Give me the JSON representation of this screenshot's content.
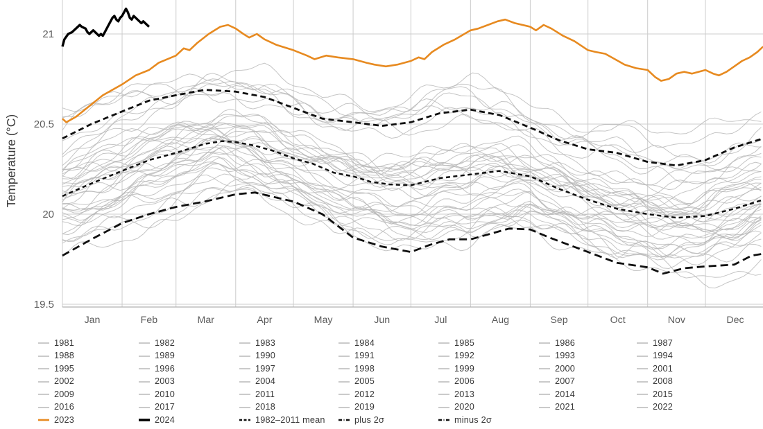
{
  "colors": {
    "grid": "#cccccc",
    "axis_line": "#b0b0b0",
    "year_line": "#b6b6b6",
    "legend_year_swatch": "#bdbdbd",
    "orange_2023": "#E78A20",
    "black_2024": "#000000",
    "dashed_stat": "#101010",
    "tick_text": "#5b5b5b",
    "title_text": "#3a3a3a"
  },
  "chart": {
    "y_axis": {
      "title": "Temperature (°C)",
      "ticks": [
        {
          "label": "21",
          "value": 21
        },
        {
          "label": "20.5",
          "value": 20.5
        },
        {
          "label": "20",
          "value": 20
        },
        {
          "label": "19.5",
          "value": 19.5
        }
      ]
    },
    "x_axis": {
      "months": [
        "Jan",
        "Feb",
        "Mar",
        "Apr",
        "May",
        "Jun",
        "Jul",
        "Aug",
        "Sep",
        "Oct",
        "Nov",
        "Dec"
      ],
      "month_start_days": [
        0,
        31,
        59,
        90,
        120,
        151,
        181,
        212,
        243,
        273,
        304,
        334
      ],
      "end_day": 365
    }
  },
  "chart_data": {
    "type": "line",
    "title": "",
    "xlabel": "",
    "ylabel": "Temperature (°C)",
    "ylim": [
      19.5,
      21.19
    ],
    "x_unit": "day_of_year",
    "grid": true,
    "legend_position": "bottom",
    "series": [
      {
        "name": "plus 2σ",
        "style": "dashed",
        "color": "#101010",
        "width": 2.8,
        "dash": "8,5",
        "points": [
          [
            0,
            20.42
          ],
          [
            15,
            20.5
          ],
          [
            31,
            20.57
          ],
          [
            45,
            20.63
          ],
          [
            59,
            20.66
          ],
          [
            74,
            20.69
          ],
          [
            90,
            20.68
          ],
          [
            105,
            20.65
          ],
          [
            120,
            20.59
          ],
          [
            135,
            20.53
          ],
          [
            151,
            20.51
          ],
          [
            166,
            20.49
          ],
          [
            181,
            20.51
          ],
          [
            196,
            20.56
          ],
          [
            212,
            20.58
          ],
          [
            227,
            20.55
          ],
          [
            243,
            20.48
          ],
          [
            258,
            20.41
          ],
          [
            273,
            20.36
          ],
          [
            288,
            20.34
          ],
          [
            304,
            20.29
          ],
          [
            319,
            20.27
          ],
          [
            334,
            20.3
          ],
          [
            349,
            20.37
          ],
          [
            364,
            20.42
          ]
        ]
      },
      {
        "name": "1982–2011 mean",
        "style": "dashed",
        "color": "#101010",
        "width": 2.5,
        "dash": "6,4.5",
        "points": [
          [
            0,
            20.1
          ],
          [
            15,
            20.17
          ],
          [
            31,
            20.24
          ],
          [
            45,
            20.3
          ],
          [
            59,
            20.34
          ],
          [
            74,
            20.39
          ],
          [
            83,
            20.405
          ],
          [
            90,
            20.4
          ],
          [
            100,
            20.38
          ],
          [
            110,
            20.35
          ],
          [
            120,
            20.31
          ],
          [
            130,
            20.28
          ],
          [
            141,
            20.23
          ],
          [
            151,
            20.21
          ],
          [
            160,
            20.18
          ],
          [
            170,
            20.165
          ],
          [
            181,
            20.16
          ],
          [
            196,
            20.2
          ],
          [
            212,
            20.22
          ],
          [
            227,
            20.24
          ],
          [
            243,
            20.21
          ],
          [
            258,
            20.14
          ],
          [
            273,
            20.08
          ],
          [
            288,
            20.03
          ],
          [
            304,
            20.0
          ],
          [
            319,
            19.98
          ],
          [
            334,
            19.99
          ],
          [
            349,
            20.03
          ],
          [
            364,
            20.08
          ]
        ]
      },
      {
        "name": "minus 2σ",
        "style": "dashed",
        "color": "#101010",
        "width": 2.8,
        "dash": "11,6",
        "points": [
          [
            0,
            19.77
          ],
          [
            15,
            19.86
          ],
          [
            31,
            19.95
          ],
          [
            45,
            20.0
          ],
          [
            59,
            20.04
          ],
          [
            74,
            20.07
          ],
          [
            90,
            20.11
          ],
          [
            100,
            20.12
          ],
          [
            120,
            20.07
          ],
          [
            135,
            20.0
          ],
          [
            151,
            19.87
          ],
          [
            166,
            19.82
          ],
          [
            181,
            19.79
          ],
          [
            191,
            19.83
          ],
          [
            201,
            19.86
          ],
          [
            212,
            19.86
          ],
          [
            222,
            19.89
          ],
          [
            232,
            19.92
          ],
          [
            243,
            19.915
          ],
          [
            253,
            19.87
          ],
          [
            263,
            19.83
          ],
          [
            273,
            19.79
          ],
          [
            288,
            19.73
          ],
          [
            304,
            19.705
          ],
          [
            312,
            19.67
          ],
          [
            323,
            19.7
          ],
          [
            334,
            19.71
          ],
          [
            349,
            19.72
          ],
          [
            358,
            19.77
          ],
          [
            364,
            19.78
          ]
        ]
      },
      {
        "name": "2023",
        "style": "solid",
        "color": "#E78A20",
        "width": 2.6,
        "points": [
          [
            0,
            20.53
          ],
          [
            2,
            20.51
          ],
          [
            7,
            20.54
          ],
          [
            14,
            20.6
          ],
          [
            21,
            20.66
          ],
          [
            31,
            20.72
          ],
          [
            38,
            20.77
          ],
          [
            45,
            20.8
          ],
          [
            50,
            20.84
          ],
          [
            59,
            20.88
          ],
          [
            63,
            20.92
          ],
          [
            66,
            20.91
          ],
          [
            70,
            20.95
          ],
          [
            76,
            21.0
          ],
          [
            82,
            21.04
          ],
          [
            86,
            21.05
          ],
          [
            90,
            21.03
          ],
          [
            94,
            21.0
          ],
          [
            97,
            20.98
          ],
          [
            101,
            21.0
          ],
          [
            105,
            20.97
          ],
          [
            111,
            20.94
          ],
          [
            120,
            20.91
          ],
          [
            127,
            20.88
          ],
          [
            131,
            20.86
          ],
          [
            137,
            20.88
          ],
          [
            143,
            20.87
          ],
          [
            151,
            20.86
          ],
          [
            158,
            20.84
          ],
          [
            162,
            20.83
          ],
          [
            168,
            20.82
          ],
          [
            174,
            20.83
          ],
          [
            181,
            20.85
          ],
          [
            185,
            20.87
          ],
          [
            188,
            20.86
          ],
          [
            192,
            20.9
          ],
          [
            198,
            20.94
          ],
          [
            204,
            20.97
          ],
          [
            212,
            21.02
          ],
          [
            216,
            21.03
          ],
          [
            221,
            21.05
          ],
          [
            226,
            21.07
          ],
          [
            230,
            21.08
          ],
          [
            235,
            21.06
          ],
          [
            243,
            21.04
          ],
          [
            246,
            21.02
          ],
          [
            250,
            21.05
          ],
          [
            254,
            21.03
          ],
          [
            260,
            20.99
          ],
          [
            266,
            20.96
          ],
          [
            273,
            20.91
          ],
          [
            277,
            20.9
          ],
          [
            282,
            20.89
          ],
          [
            287,
            20.86
          ],
          [
            292,
            20.83
          ],
          [
            298,
            20.81
          ],
          [
            304,
            20.8
          ],
          [
            308,
            20.76
          ],
          [
            311,
            20.74
          ],
          [
            315,
            20.75
          ],
          [
            319,
            20.78
          ],
          [
            323,
            20.79
          ],
          [
            327,
            20.78
          ],
          [
            334,
            20.8
          ],
          [
            338,
            20.78
          ],
          [
            341,
            20.77
          ],
          [
            345,
            20.79
          ],
          [
            349,
            20.82
          ],
          [
            353,
            20.85
          ],
          [
            357,
            20.87
          ],
          [
            361,
            20.9
          ],
          [
            364,
            20.93
          ]
        ]
      },
      {
        "name": "2024",
        "style": "solid",
        "color": "#000000",
        "width": 3.4,
        "points": [
          [
            0,
            20.93
          ],
          [
            1,
            20.97
          ],
          [
            3,
            21.0
          ],
          [
            5,
            21.01
          ],
          [
            6,
            21.02
          ],
          [
            8,
            21.04
          ],
          [
            9,
            21.05
          ],
          [
            10,
            21.04
          ],
          [
            12,
            21.03
          ],
          [
            13,
            21.01
          ],
          [
            14,
            21.0
          ],
          [
            15,
            21.01
          ],
          [
            16,
            21.02
          ],
          [
            17,
            21.01
          ],
          [
            19,
            20.99
          ],
          [
            20,
            21.0
          ],
          [
            21,
            20.99
          ],
          [
            22,
            21.01
          ],
          [
            24,
            21.05
          ],
          [
            26,
            21.09
          ],
          [
            27,
            21.1
          ],
          [
            28,
            21.08
          ],
          [
            29,
            21.07
          ],
          [
            30,
            21.09
          ],
          [
            31,
            21.1
          ],
          [
            32,
            21.12
          ],
          [
            33,
            21.14
          ],
          [
            34,
            21.12
          ],
          [
            35,
            21.09
          ],
          [
            36,
            21.08
          ],
          [
            37,
            21.1
          ],
          [
            38,
            21.09
          ],
          [
            40,
            21.07
          ],
          [
            41,
            21.06
          ],
          [
            42,
            21.07
          ],
          [
            43,
            21.06
          ],
          [
            44,
            21.05
          ],
          [
            45,
            21.04
          ]
        ]
      }
    ],
    "background_years": {
      "description": "Individual years 1981-2022 drawn as thin gray lines between ±2σ band; offsets are approximate position in σ units relative to the 1982–2011 mean.",
      "names": [
        1981,
        1982,
        1983,
        1984,
        1985,
        1986,
        1987,
        1988,
        1989,
        1990,
        1991,
        1992,
        1993,
        1994,
        1995,
        1996,
        1997,
        1998,
        1999,
        2000,
        2001,
        2002,
        2003,
        2004,
        2005,
        2006,
        2007,
        2008,
        2009,
        2010,
        2011,
        2012,
        2013,
        2014,
        2015,
        2016,
        2017,
        2018,
        2019,
        2020,
        2021,
        2022
      ],
      "offsets_sigma": [
        -1.6,
        -1.8,
        -0.9,
        -1.7,
        -1.9,
        -1.3,
        -0.4,
        -1.1,
        -1.6,
        -0.7,
        -0.8,
        -1.2,
        -1.0,
        -0.9,
        -0.3,
        -0.9,
        0.2,
        0.5,
        -0.6,
        -0.5,
        0.0,
        0.3,
        0.5,
        0.3,
        0.6,
        0.4,
        0.2,
        0.1,
        0.5,
        0.7,
        0.1,
        0.4,
        0.6,
        1.0,
        1.6,
        2.7,
        2.1,
        1.8,
        2.1,
        2.5,
        1.9,
        2.5
      ]
    }
  },
  "legend": {
    "year_rows": [
      [
        "1981",
        "1982",
        "1983",
        "1984",
        "1985",
        "1986",
        "1987"
      ],
      [
        "1988",
        "1989",
        "1990",
        "1991",
        "1992",
        "1993",
        "1994"
      ],
      [
        "1995",
        "1996",
        "1997",
        "1998",
        "1999",
        "2000",
        "2001"
      ],
      [
        "2002",
        "2003",
        "2004",
        "2005",
        "2006",
        "2007",
        "2008"
      ],
      [
        "2009",
        "2010",
        "2011",
        "2012",
        "2013",
        "2014",
        "2015"
      ],
      [
        "2016",
        "2017",
        "2018",
        "2019",
        "2020",
        "2021",
        "2022"
      ]
    ],
    "special_row": [
      {
        "label": "2023",
        "style": "solid",
        "color": "#E78A20",
        "width": 2.6
      },
      {
        "label": "2024",
        "style": "solid",
        "color": "#000000",
        "width": 3.6
      },
      {
        "label": "1982–2011 mean",
        "style": "dashed",
        "color": "#101010",
        "width": 2.6
      },
      {
        "label": "plus 2σ",
        "style": "dashdot",
        "color": "#101010",
        "width": 2.6
      },
      {
        "label": "minus 2σ",
        "style": "dashdot",
        "color": "#101010",
        "width": 2.6
      }
    ]
  }
}
